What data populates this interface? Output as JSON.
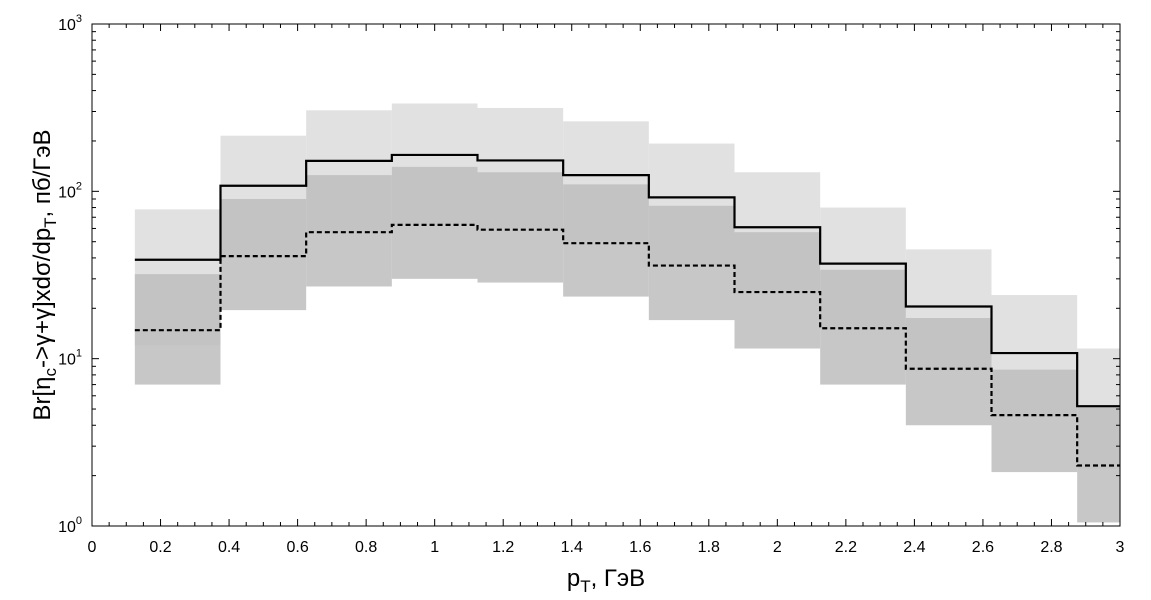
{
  "chart_data": {
    "type": "line",
    "step": true,
    "xlabel": {
      "main": "p",
      "sub": "T",
      "rest": ", ГэВ"
    },
    "ylabel": {
      "pre": "Br[η",
      "sub1": "c",
      "mid": "->γ+γ]xdσ/dp",
      "sub2": "T",
      "post": ", пб/ГэВ"
    },
    "xlim": [
      0,
      3
    ],
    "ylim": [
      1,
      1000
    ],
    "yscale": "log",
    "grid": false,
    "x_ticks": [
      0,
      0.2,
      0.4,
      0.6,
      0.8,
      1,
      1.2,
      1.4,
      1.6,
      1.8,
      2,
      2.2,
      2.4,
      2.6,
      2.8,
      3
    ],
    "x_tick_labels": [
      "0",
      "0.2",
      "0.4",
      "0.6",
      "0.8",
      "1",
      "1.2",
      "1.4",
      "1.6",
      "1.8",
      "2",
      "2.2",
      "2.4",
      "2.6",
      "2.8",
      "3"
    ],
    "y_ticks": [
      {
        "value": 1,
        "base": "10",
        "exp": "0"
      },
      {
        "value": 10,
        "base": "10",
        "exp": "1"
      },
      {
        "value": 100,
        "base": "10",
        "exp": "2"
      },
      {
        "value": 1000,
        "base": "10",
        "exp": "3"
      }
    ],
    "bins": [
      [
        0.125,
        0.375
      ],
      [
        0.375,
        0.625
      ],
      [
        0.625,
        0.875
      ],
      [
        0.875,
        1.125
      ],
      [
        1.125,
        1.375
      ],
      [
        1.375,
        1.625
      ],
      [
        1.625,
        1.875
      ],
      [
        1.875,
        2.125
      ],
      [
        2.125,
        2.375
      ],
      [
        2.375,
        2.625
      ],
      [
        2.625,
        2.875
      ],
      [
        2.875,
        3.0
      ]
    ],
    "series": [
      {
        "style": "solid",
        "values": [
          39,
          108,
          152,
          165,
          153,
          125,
          92,
          61,
          37,
          20.5,
          10.8,
          5.2
        ],
        "band_low": [
          12,
          40,
          57,
          63,
          60,
          50,
          36,
          25,
          15,
          8.5,
          4.5,
          2.2
        ],
        "band_high": [
          78,
          215,
          305,
          335,
          315,
          262,
          193,
          130,
          80,
          45,
          24,
          11.5
        ],
        "band_color": "#dcdcdc",
        "line_color": "#000000"
      },
      {
        "style": "dashed",
        "values": [
          14.8,
          41,
          57,
          63,
          59,
          49,
          36,
          25,
          15.2,
          8.7,
          4.6,
          2.3
        ],
        "band_low": [
          7,
          19.5,
          27,
          30,
          28.5,
          23.5,
          17,
          11.5,
          7,
          4,
          2.1,
          1.05
        ],
        "band_high": [
          32,
          90,
          125,
          140,
          130,
          110,
          82,
          57,
          34,
          17.5,
          8.6,
          5.2
        ],
        "band_color": "#bdbdbd",
        "line_color": "#000000"
      }
    ]
  }
}
